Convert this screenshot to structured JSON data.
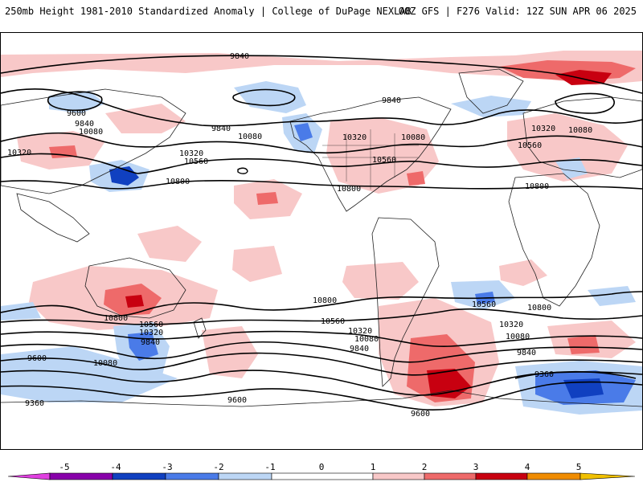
{
  "header": {
    "left_title": "250mb Height 1981-2010 Standardized Anomaly | College of DuPage NEXLAB",
    "right_title": "00Z GFS | F276 Valid: 12Z SUN APR 06 2025"
  },
  "colors": {
    "anom_neg5": "#e040e0",
    "anom_neg4": "#8800aa",
    "anom_neg3": "#1040c0",
    "anom_neg2": "#4a7be8",
    "anom_neg1": "#bcd6f5",
    "anom_pos1": "#f8c8c8",
    "anom_pos2": "#ee6a6a",
    "anom_pos3": "#c80010",
    "anom_pos4": "#f08c00",
    "anom_pos5": "#f0c000",
    "contour": "#000000",
    "coast": "#222222"
  },
  "contours": [
    {
      "label": "9840"
    },
    {
      "label": "9600"
    },
    {
      "label": "9840"
    },
    {
      "label": "10080"
    },
    {
      "label": "10320"
    },
    {
      "label": "9840"
    },
    {
      "label": "10080"
    },
    {
      "label": "10320"
    },
    {
      "label": "10560"
    },
    {
      "label": "10800"
    },
    {
      "label": "10320"
    },
    {
      "label": "10560"
    },
    {
      "label": "10080"
    },
    {
      "label": "10800"
    },
    {
      "label": "9840"
    },
    {
      "label": "10320"
    },
    {
      "label": "10080"
    },
    {
      "label": "10560"
    },
    {
      "label": "10800"
    },
    {
      "label": "10800"
    },
    {
      "label": "10560"
    },
    {
      "label": "10320"
    },
    {
      "label": "9840"
    },
    {
      "label": "9600"
    },
    {
      "label": "10080"
    },
    {
      "label": "9360"
    },
    {
      "label": "10800"
    },
    {
      "label": "10560"
    },
    {
      "label": "10320"
    },
    {
      "label": "10080"
    },
    {
      "label": "9840"
    },
    {
      "label": "9600"
    },
    {
      "label": "10800"
    },
    {
      "label": "10560"
    },
    {
      "label": "10320"
    },
    {
      "label": "10080"
    },
    {
      "label": "9840"
    },
    {
      "label": "9360"
    },
    {
      "label": "9600"
    }
  ],
  "colorbar": {
    "ticks": [
      "-5",
      "-4",
      "-3",
      "-2",
      "-1",
      "0",
      "1",
      "2",
      "3",
      "4",
      "5"
    ]
  }
}
